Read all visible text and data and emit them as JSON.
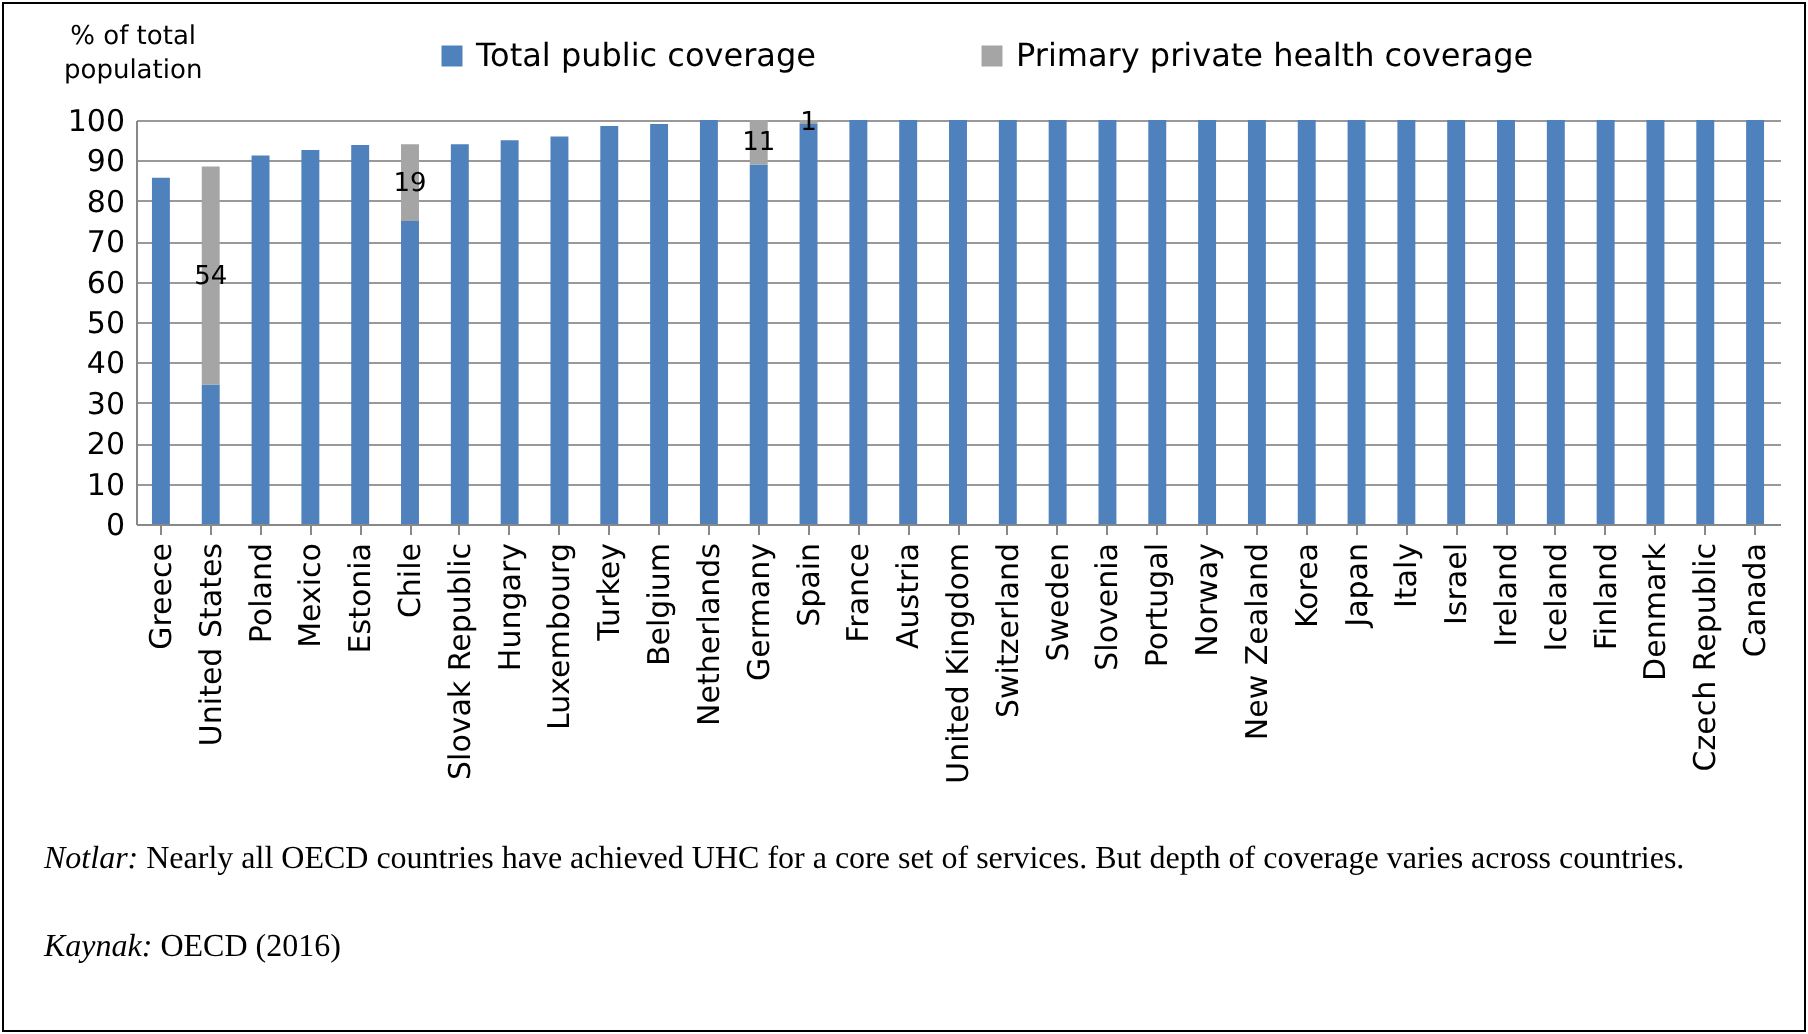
{
  "chart_data": {
    "type": "bar",
    "stacked": true,
    "ylabel": "% of total population",
    "categories": [
      "Greece",
      "United States",
      "Poland",
      "Mexico",
      "Estonia",
      "Chile",
      "Slovak Republic",
      "Hungary",
      "Luxembourg",
      "Turkey",
      "Belgium",
      "Netherlands",
      "Germany",
      "Spain",
      "France",
      "Austria",
      "United Kingdom",
      "Switzerland",
      "Sweden",
      "Slovenia",
      "Portugal",
      "Norway",
      "New Zealand",
      "Korea",
      "Japan",
      "Italy",
      "Israel",
      "Ireland",
      "Iceland",
      "Finland",
      "Denmark",
      "Czech Republic",
      "Canada"
    ],
    "series": [
      {
        "name": "Total public coverage",
        "color": "#4f81bd",
        "values": [
          85.7,
          34.5,
          91.2,
          92.6,
          93.8,
          75,
          94,
          95,
          95.9,
          98.5,
          99,
          100,
          89,
          99,
          100,
          100,
          100,
          100,
          100,
          100,
          100,
          100,
          100,
          100,
          100,
          100,
          100,
          100,
          100,
          100,
          100,
          100,
          100
        ]
      },
      {
        "name": "Primary private health coverage",
        "color": "#a5a5a5",
        "values": [
          null,
          54,
          null,
          null,
          null,
          19,
          null,
          null,
          null,
          null,
          null,
          null,
          11,
          1,
          null,
          null,
          null,
          null,
          null,
          null,
          null,
          null,
          null,
          null,
          null,
          null,
          null,
          null,
          null,
          null,
          null,
          null,
          null
        ],
        "value_labels": [
          null,
          "54",
          null,
          null,
          null,
          "19",
          null,
          null,
          null,
          null,
          null,
          null,
          "11",
          "1",
          null,
          null,
          null,
          null,
          null,
          null,
          null,
          null,
          null,
          null,
          null,
          null,
          null,
          null,
          null,
          null,
          null,
          null,
          null
        ]
      }
    ],
    "ylim": [
      0,
      100
    ],
    "yticks": [
      0,
      10,
      20,
      30,
      40,
      50,
      60,
      70,
      80,
      90,
      100
    ],
    "grid": "y",
    "legend": "top",
    "annotations": [
      "Notlar: Nearly all OECD countries have achieved UHC for a core set of services. But depth of coverage varies across countries.",
      "Kaynak: OECD (2016)"
    ]
  }
}
